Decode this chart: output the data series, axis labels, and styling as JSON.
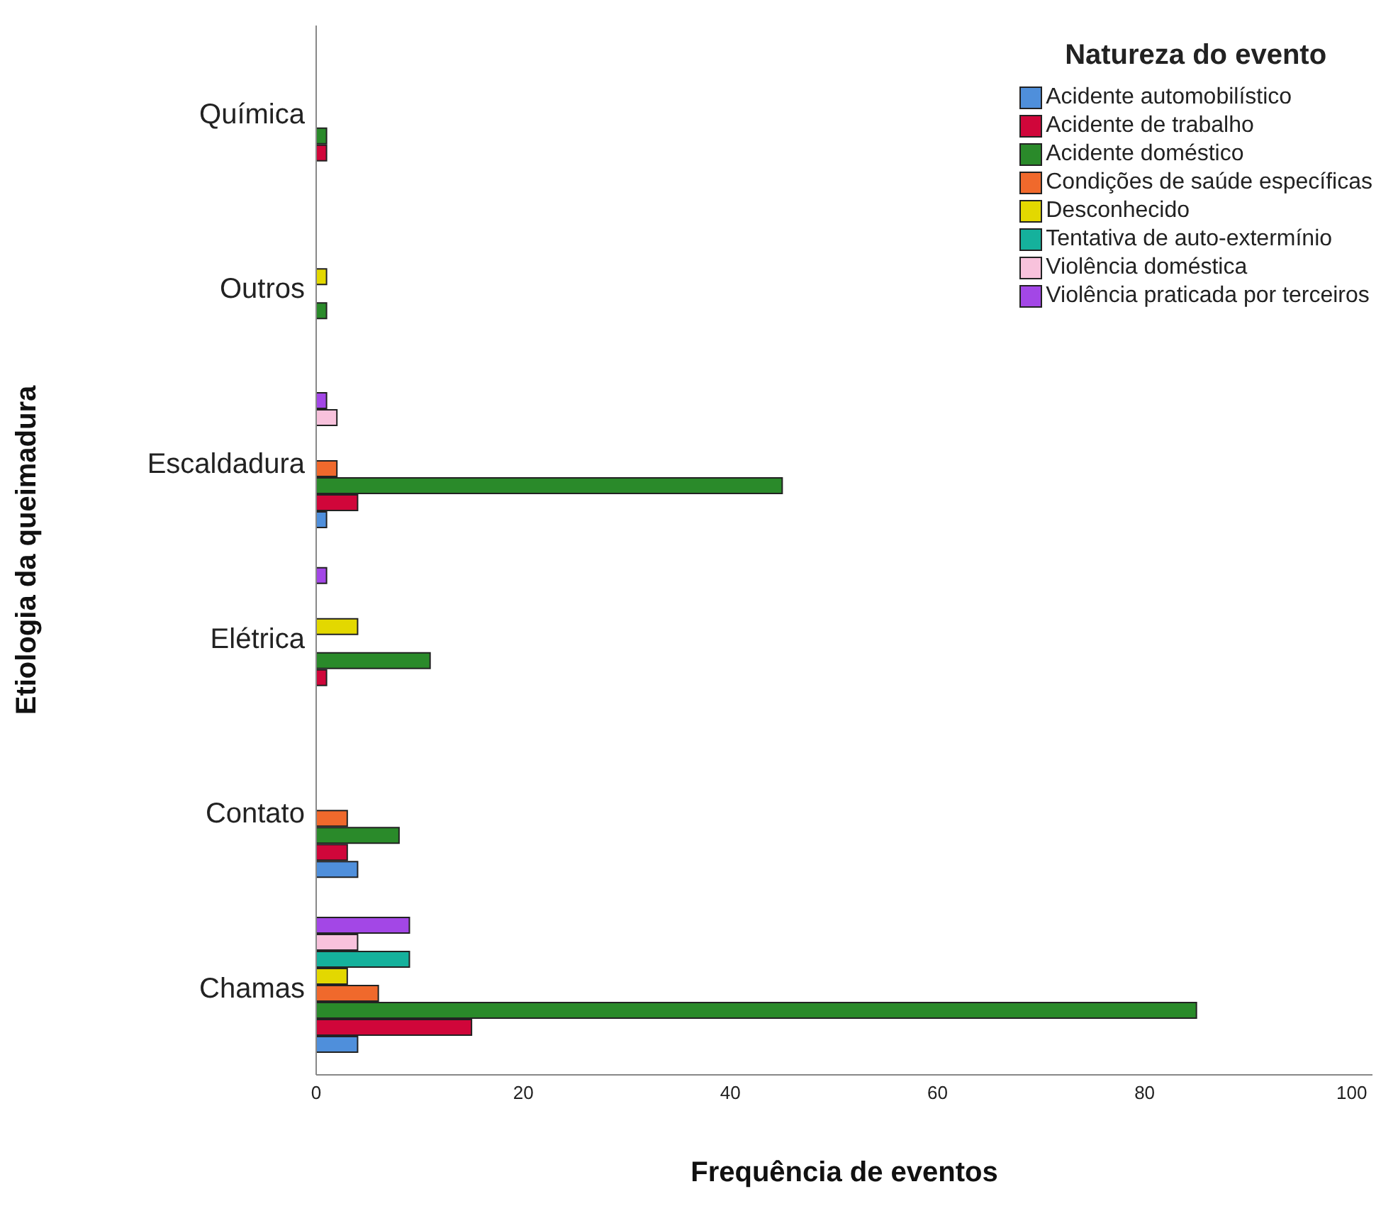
{
  "chart_data": {
    "type": "bar",
    "orientation": "horizontal",
    "xlabel": "Frequência de eventos",
    "ylabel": "Etiologia da queimadura",
    "legend_title": "Natureza do evento",
    "legend": "top right",
    "categories": [
      "Química",
      "Outros",
      "Escaldadura",
      "Elétrica",
      "Contato",
      "Chamas"
    ],
    "xlim": [
      0,
      102
    ],
    "xticks": [
      0,
      20,
      40,
      60,
      80,
      100
    ],
    "series": [
      {
        "name": "Acidente automobilístico",
        "color": "#4f8fdb",
        "values": [
          null,
          null,
          1,
          null,
          4,
          4
        ]
      },
      {
        "name": "Acidente de trabalho",
        "color": "#d0063a",
        "values": [
          1,
          null,
          4,
          1,
          3,
          15
        ]
      },
      {
        "name": "Acidente doméstico",
        "color": "#2a8a2a",
        "values": [
          1,
          1,
          45,
          11,
          8,
          85
        ]
      },
      {
        "name": "Condições de saúde específicas",
        "color": "#f0692c",
        "values": [
          null,
          null,
          2,
          null,
          3,
          6
        ]
      },
      {
        "name": "Desconhecido",
        "color": "#e3d800",
        "values": [
          null,
          1,
          null,
          4,
          null,
          3
        ]
      },
      {
        "name": "Tentativa de auto-extermínio",
        "color": "#15b19c",
        "values": [
          null,
          null,
          null,
          null,
          null,
          9
        ]
      },
      {
        "name": "Violência doméstica",
        "color": "#f8c2dc",
        "values": [
          null,
          null,
          2,
          null,
          null,
          4
        ]
      },
      {
        "name": "Violência praticada por terceiros",
        "color": "#a347e6",
        "values": [
          null,
          null,
          1,
          1,
          null,
          9
        ]
      }
    ]
  }
}
